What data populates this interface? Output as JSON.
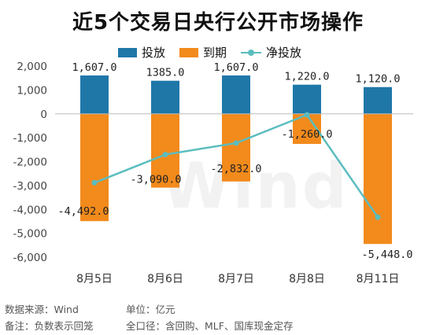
{
  "title": "近5个交易日央行公开市场操作",
  "legend": {
    "invest": "投放",
    "expire": "到期",
    "net": "净投放"
  },
  "colors": {
    "invest": "#1f77a8",
    "expire": "#f28a1c",
    "net": "#5bbdbf"
  },
  "watermark": "Wind",
  "footer": {
    "source": "数据来源：Wind",
    "unit": "单位：亿元",
    "note": "备注：负数表示回笼",
    "scope": "全口径：含回购、MLF、国库现金定存"
  },
  "chart_data": {
    "type": "bar",
    "categories": [
      "8月5日",
      "8月6日",
      "8月7日",
      "8月8日",
      "8月11日"
    ],
    "series": [
      {
        "name": "投放",
        "values": [
          1607.0,
          1385.0,
          1607.0,
          1220.0,
          1120.0
        ]
      },
      {
        "name": "到期",
        "values": [
          -4492.0,
          -3090.0,
          -2832.0,
          -1260.0,
          -5448.0
        ]
      },
      {
        "name": "净投放",
        "values": [
          -2885.0,
          -1705.0,
          -1225.0,
          -40.0,
          -4328.0
        ]
      }
    ],
    "invest_labels": [
      "1,607.0",
      "1385.0",
      "1,607.0",
      "1,220.0",
      "1,120.0"
    ],
    "expire_labels": [
      "-4,492.0",
      "-3,090.0",
      "-2,832.0",
      "-1,260.0",
      "-5,448.0"
    ],
    "yticks": [
      "2,000",
      "1,000",
      "0",
      "-1,000",
      "-2,000",
      "-3,000",
      "-4,000",
      "-5,000",
      "-6,000"
    ],
    "ylim": [
      -6000,
      2000
    ],
    "legend_position": "top"
  }
}
